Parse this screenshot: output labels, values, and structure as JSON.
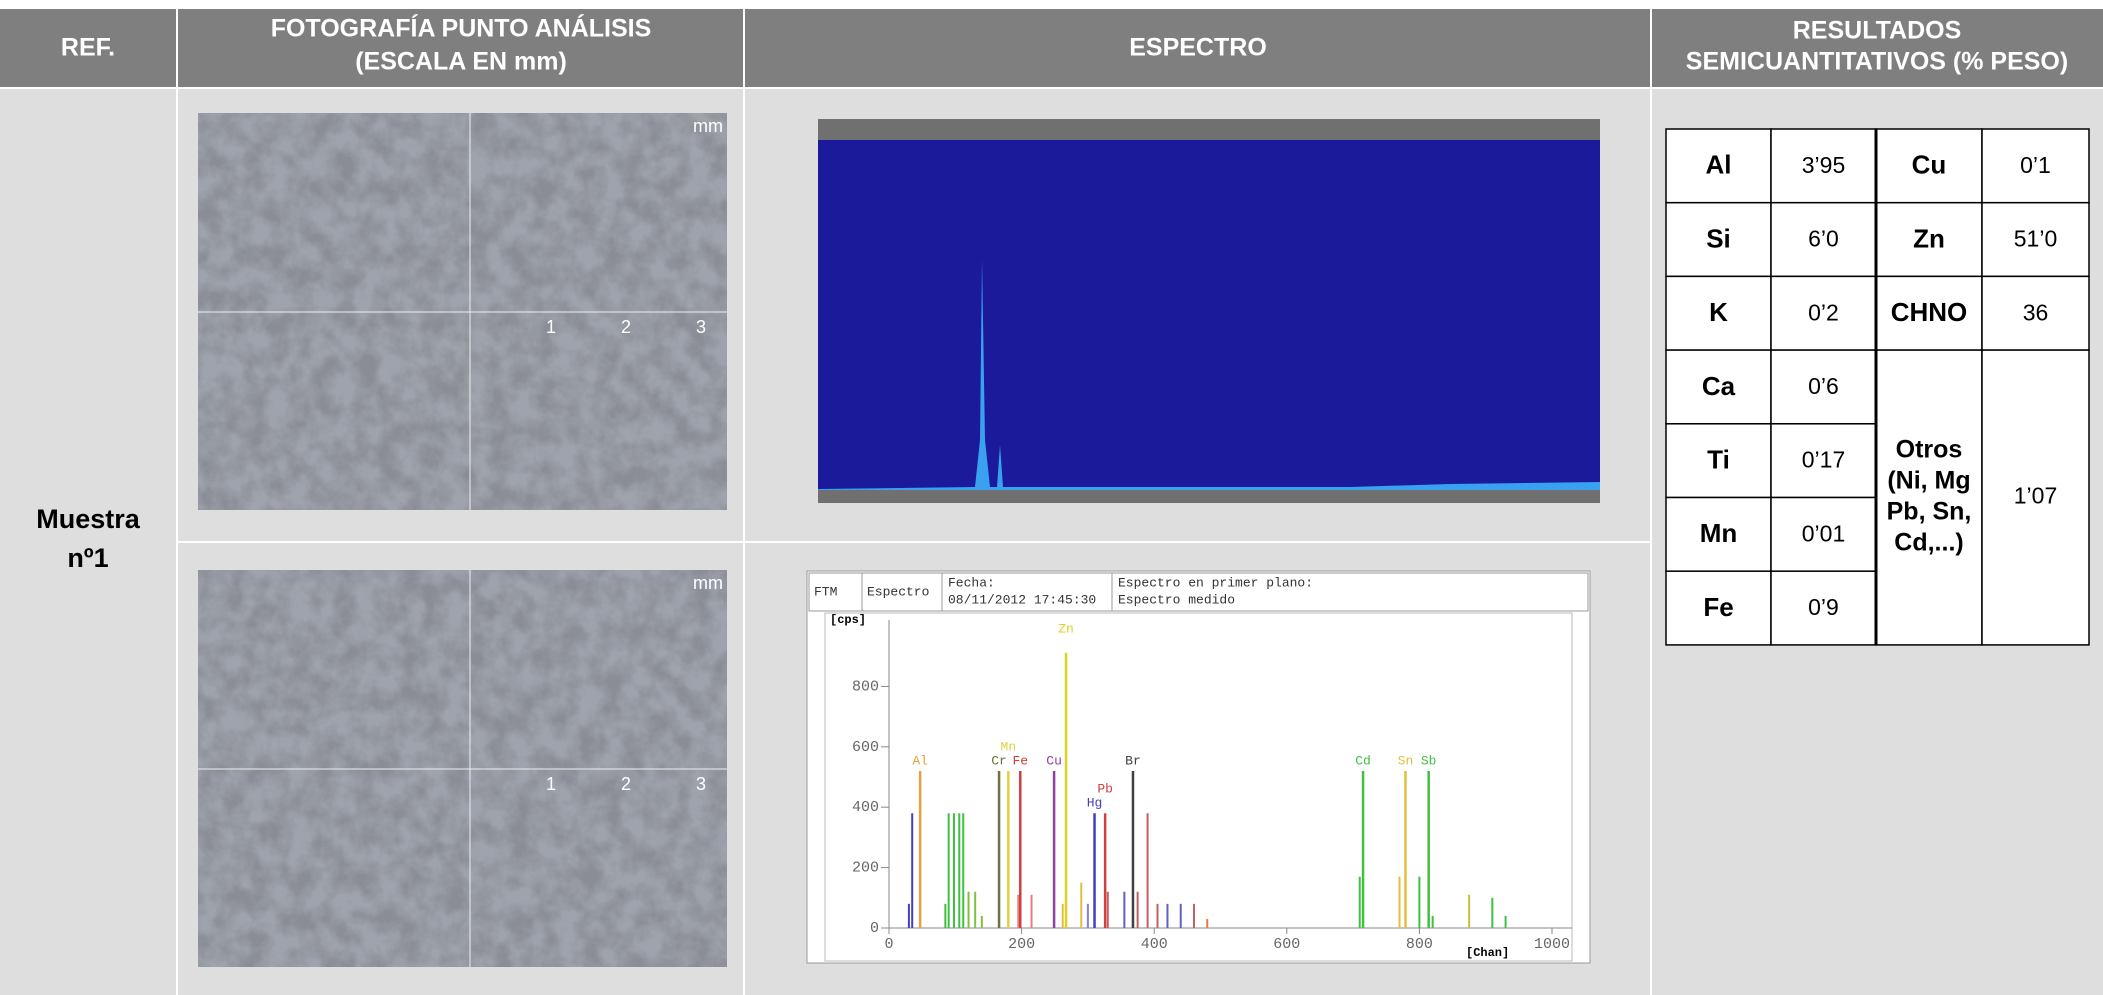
{
  "header": {
    "ref": "REF.",
    "photo": [
      "FOTOGRAFÍA PUNTO ANÁLISIS",
      "(ESCALA EN mm)"
    ],
    "spectrum": "ESPECTRO",
    "results": [
      "RESULTADOS",
      "SEMICUANTITATIVOS (% PESO)"
    ]
  },
  "sample": [
    "Muestra",
    "nº1"
  ],
  "photos": [
    {
      "scale": "mm",
      "marks": [
        "1",
        "2",
        "3"
      ]
    },
    {
      "scale": "mm",
      "marks": [
        "1",
        "2",
        "3"
      ]
    }
  ],
  "spectrum": {
    "type": "bar",
    "header": [
      "FTM",
      "Espectro",
      "Fecha:",
      "08/11/2012 17:45:30",
      "Espectro en primer plano:",
      "Espectro medido"
    ],
    "y_label": "[cps]",
    "x_label": "[Chan]",
    "xlim": [
      0,
      1000
    ],
    "ylim": [
      0,
      1000
    ],
    "xticks": [
      0,
      200,
      400,
      600,
      800,
      1000
    ],
    "yticks": [
      0,
      200,
      400,
      600,
      800
    ],
    "peaks": [
      {
        "label": "Al",
        "x": 47,
        "value": 520,
        "color": "#e8a040"
      },
      {
        "label": "Cr",
        "x": 166,
        "value": 520,
        "color": "#707040"
      },
      {
        "label": "Mn",
        "x": 180,
        "value": 520,
        "color": "#e0d040"
      },
      {
        "label": "Fe",
        "x": 198,
        "value": 520,
        "color": "#d04040"
      },
      {
        "label": "Cu",
        "x": 249,
        "value": 520,
        "color": "#9040a0"
      },
      {
        "label": "Zn",
        "x": 267,
        "value": 911,
        "color": "#e0d020"
      },
      {
        "label": "Hg",
        "x": 310,
        "value": 380,
        "color": "#4040c0"
      },
      {
        "label": "Pb",
        "x": 326,
        "value": 380,
        "color": "#d04040"
      },
      {
        "label": "Br",
        "x": 368,
        "value": 520,
        "color": "#404040"
      },
      {
        "label": "Cd",
        "x": 715,
        "value": 520,
        "color": "#40c040"
      },
      {
        "label": "Sn",
        "x": 779,
        "value": 520,
        "color": "#e0c040"
      },
      {
        "label": "Sb",
        "x": 814,
        "value": 520,
        "color": "#40c040"
      }
    ],
    "minor": [
      {
        "x": 30,
        "value": 80,
        "color": "#4040c0"
      },
      {
        "x": 35,
        "value": 380,
        "color": "#4040c0"
      },
      {
        "x": 85,
        "value": 80,
        "color": "#40c040"
      },
      {
        "x": 90,
        "value": 380,
        "color": "#40c040"
      },
      {
        "x": 98,
        "value": 380,
        "color": "#40c040"
      },
      {
        "x": 106,
        "value": 380,
        "color": "#40c040"
      },
      {
        "x": 112,
        "value": 380,
        "color": "#40c040"
      },
      {
        "x": 120,
        "value": 120,
        "color": "#80c040"
      },
      {
        "x": 130,
        "value": 120,
        "color": "#80c040"
      },
      {
        "x": 140,
        "value": 40,
        "color": "#80c040"
      },
      {
        "x": 195,
        "value": 110,
        "color": "#e08080"
      },
      {
        "x": 215,
        "value": 110,
        "color": "#e08080"
      },
      {
        "x": 262,
        "value": 80,
        "color": "#e0c040"
      },
      {
        "x": 290,
        "value": 150,
        "color": "#e0c040"
      },
      {
        "x": 300,
        "value": 80,
        "color": "#8080e0"
      },
      {
        "x": 330,
        "value": 120,
        "color": "#c06060"
      },
      {
        "x": 355,
        "value": 120,
        "color": "#6060c0"
      },
      {
        "x": 375,
        "value": 120,
        "color": "#c06060"
      },
      {
        "x": 390,
        "value": 380,
        "color": "#c06060"
      },
      {
        "x": 405,
        "value": 80,
        "color": "#c06060"
      },
      {
        "x": 420,
        "value": 80,
        "color": "#6060c0"
      },
      {
        "x": 440,
        "value": 80,
        "color": "#6060c0"
      },
      {
        "x": 460,
        "value": 80,
        "color": "#c06060"
      },
      {
        "x": 480,
        "value": 30,
        "color": "#e08040"
      },
      {
        "x": 710,
        "value": 170,
        "color": "#40c040"
      },
      {
        "x": 770,
        "value": 170,
        "color": "#e0c040"
      },
      {
        "x": 800,
        "value": 170,
        "color": "#40c040"
      },
      {
        "x": 820,
        "value": 40,
        "color": "#40c040"
      },
      {
        "x": 875,
        "value": 110,
        "color": "#c0c040"
      },
      {
        "x": 910,
        "value": 100,
        "color": "#40c040"
      },
      {
        "x": 930,
        "value": 40,
        "color": "#40c040"
      }
    ]
  },
  "results": {
    "rows": [
      [
        "Al",
        "3’95",
        "Cu",
        "0’1"
      ],
      [
        "Si",
        "6’0",
        "Zn",
        "51’0"
      ],
      [
        "K",
        "0’2",
        "CHNO",
        "36"
      ],
      [
        "Ca",
        "0’6"
      ],
      [
        "Ti",
        "0’17"
      ],
      [
        "Mn",
        "0’01"
      ],
      [
        "Fe",
        "0’9"
      ]
    ],
    "other": {
      "label": [
        "Otros",
        "(Ni, Mg",
        "Pb, Sn,",
        "Cd,...)"
      ],
      "value": "1’07"
    }
  }
}
